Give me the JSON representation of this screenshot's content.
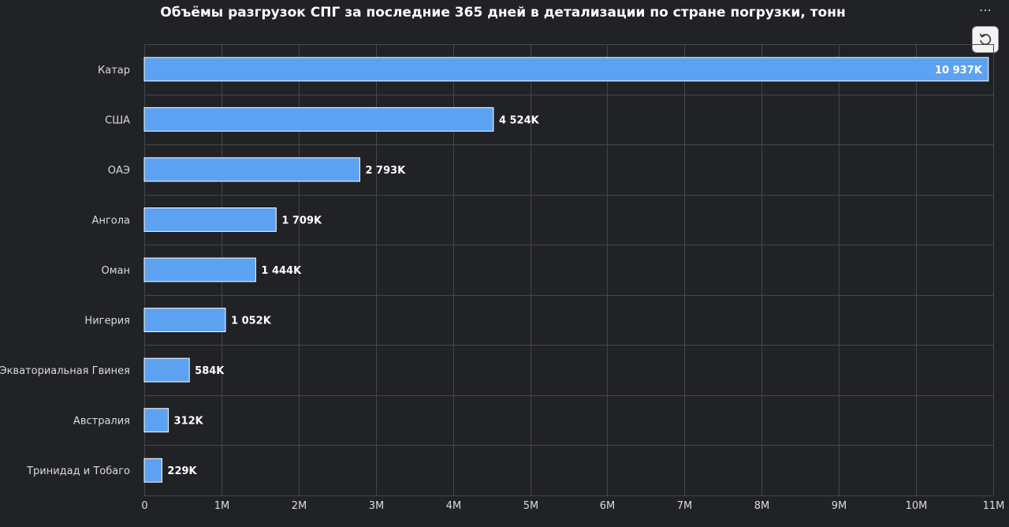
{
  "menu": {
    "label": "⋯"
  },
  "reset": {
    "icon": "reset-icon"
  },
  "chart_data": {
    "type": "bar",
    "orientation": "horizontal",
    "title": "Объёмы разгрузок СПГ за последние 365 дней в детализации по стране погрузки, тонн",
    "xlabel": "",
    "ylabel": "",
    "categories": [
      "Катар",
      "США",
      "ОАЭ",
      "Ангола",
      "Оман",
      "Нигерия",
      "Экваториальная Гвинея",
      "Австралия",
      "Тринидад и Тобаго"
    ],
    "values": [
      10937,
      4524,
      2793,
      1709,
      1444,
      1052,
      584,
      312,
      229
    ],
    "value_units": "K",
    "data_labels": [
      "10 937K",
      "4 524K",
      "2 793K",
      "1 709K",
      "1 444K",
      "1 052K",
      "584K",
      "312K",
      "229K"
    ],
    "xlim": [
      0,
      11000
    ],
    "x_ticks": [
      0,
      1000,
      2000,
      3000,
      4000,
      5000,
      6000,
      7000,
      8000,
      9000,
      10000,
      11000
    ],
    "x_tick_labels": [
      "0",
      "1M",
      "2M",
      "3M",
      "4M",
      "5M",
      "6M",
      "7M",
      "8M",
      "9M",
      "10M",
      "11M"
    ],
    "grid": true,
    "bar_color": "#5da2f0"
  }
}
